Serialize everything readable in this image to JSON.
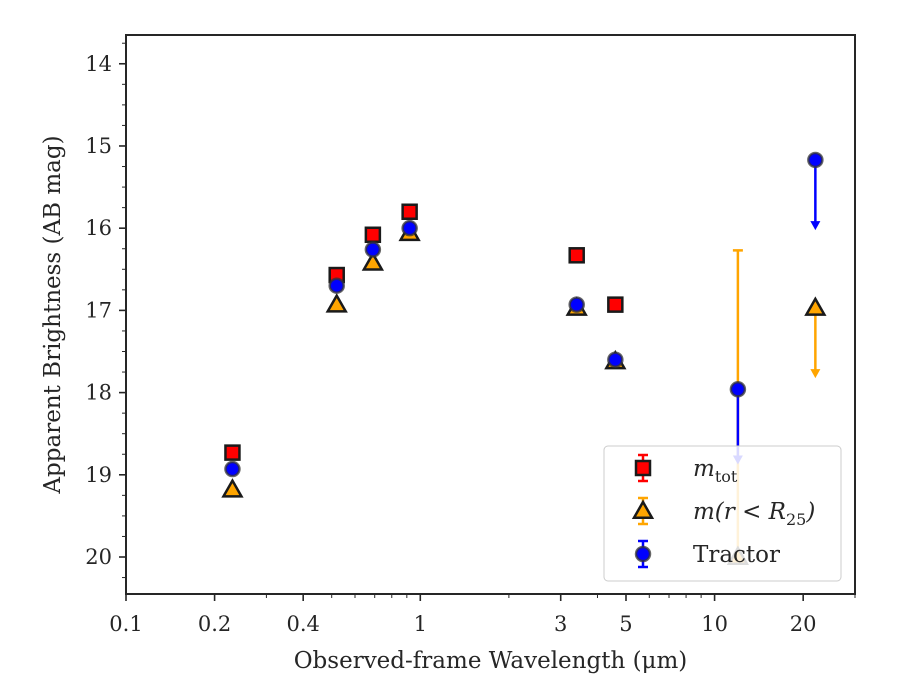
{
  "chart_data": {
    "type": "scatter",
    "xlabel": "Observed-frame Wavelength (μm)",
    "ylabel": "Apparent Brightness (AB mag)",
    "xscale": "log",
    "xlim": [
      0.1,
      30
    ],
    "ylim": [
      20.45,
      13.65
    ],
    "y_inverted": true,
    "grid": false,
    "legend_placement": "lower right",
    "x_tick_labels": [
      "0.1",
      "0.2",
      "0.4",
      "1",
      "3",
      "5",
      "10",
      "20"
    ],
    "x_ticks": [
      0.1,
      0.2,
      0.4,
      1,
      3,
      5,
      10,
      20
    ],
    "y_ticks": [
      14,
      15,
      16,
      17,
      18,
      19,
      20
    ],
    "series": [
      {
        "key": "mtot",
        "marker": "square",
        "color": "#ff0000",
        "legend": {
          "base": "m",
          "sub": "tot"
        },
        "points": [
          {
            "x": 0.23,
            "y": 18.73
          },
          {
            "x": 0.52,
            "y": 16.57
          },
          {
            "x": 0.69,
            "y": 16.08
          },
          {
            "x": 0.92,
            "y": 15.8
          },
          {
            "x": 3.4,
            "y": 16.33
          },
          {
            "x": 4.6,
            "y": 16.93
          }
        ]
      },
      {
        "key": "mr25",
        "marker": "triangle",
        "color": "#ffa500",
        "legend": {
          "pre": "m(r < ",
          "base": "R",
          "sub": "25",
          "post": ")"
        },
        "points": [
          {
            "x": 0.23,
            "y": 19.18
          },
          {
            "x": 0.52,
            "y": 16.93
          },
          {
            "x": 0.69,
            "y": 16.42
          },
          {
            "x": 0.92,
            "y": 16.06
          },
          {
            "x": 3.4,
            "y": 16.97
          },
          {
            "x": 4.6,
            "y": 17.62
          },
          {
            "x": 12,
            "y": 20.0,
            "err_low": 16.27,
            "err_high": 20.0
          },
          {
            "x": 22,
            "y": 16.97,
            "upper_limit_to": 17.8
          }
        ]
      },
      {
        "key": "tractor",
        "marker": "circle",
        "color": "#0000ff",
        "legend": {
          "text": "Tractor"
        },
        "points": [
          {
            "x": 0.23,
            "y": 18.93
          },
          {
            "x": 0.52,
            "y": 16.7
          },
          {
            "x": 0.69,
            "y": 16.26
          },
          {
            "x": 0.92,
            "y": 16.0
          },
          {
            "x": 3.4,
            "y": 16.93
          },
          {
            "x": 4.6,
            "y": 17.6
          },
          {
            "x": 12,
            "y": 17.96,
            "upper_limit_to": 18.85
          },
          {
            "x": 22,
            "y": 15.17,
            "upper_limit_to": 16.0
          }
        ]
      }
    ]
  }
}
